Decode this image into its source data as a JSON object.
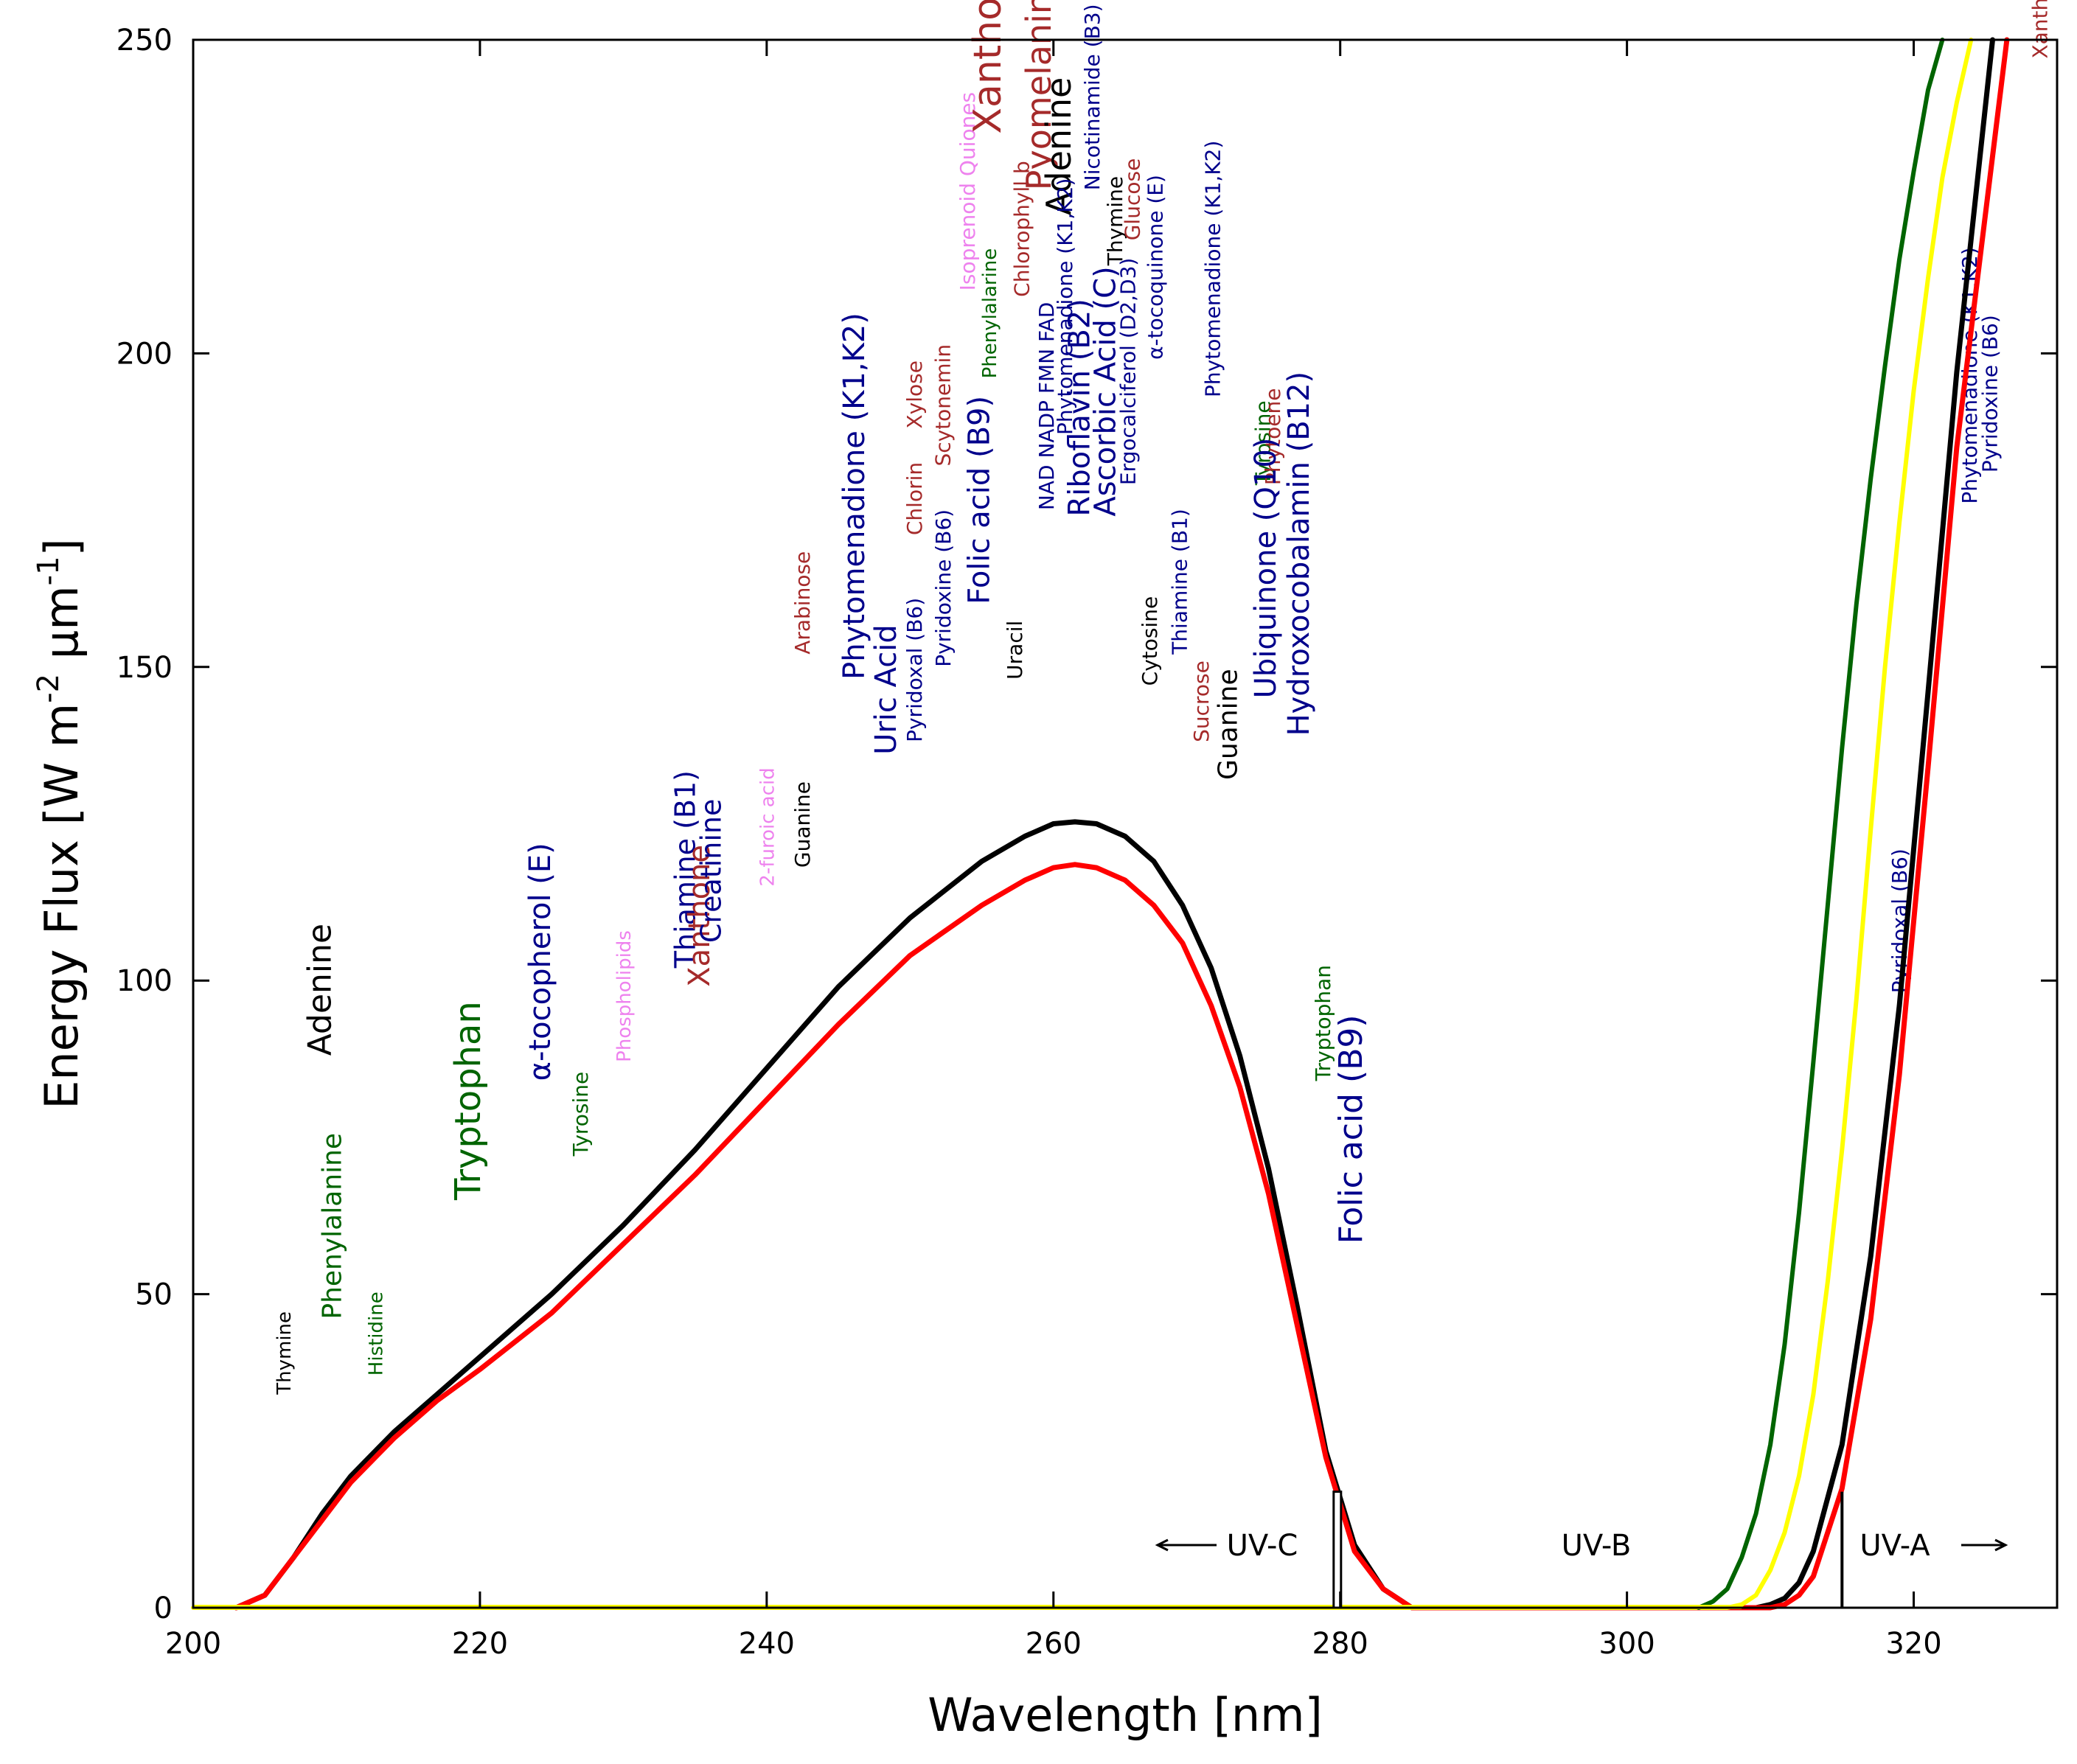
{
  "chart_data": {
    "type": "line",
    "title": "",
    "xlabel": "Wavelength [nm]",
    "ylabel": "Energy Flux [W m-2 μm-1]",
    "ylabel_parts": {
      "main": "Energy Flux [W m",
      "sup1": "-2",
      "mid": " μm",
      "sup2": "-1",
      "end": "]"
    },
    "xlim": [
      200,
      330
    ],
    "ylim": [
      0,
      250
    ],
    "xticks": [
      200,
      220,
      240,
      260,
      280,
      300,
      320
    ],
    "yticks": [
      0,
      50,
      100,
      150,
      200,
      250
    ],
    "grid": false,
    "colors": {
      "black": "#000000",
      "red": "#ff0000",
      "yellow": "#ffff00",
      "green": "#006400",
      "navy": "#00008b",
      "darkred": "#a52a2a",
      "violet": "#ee82ee"
    },
    "series": [
      {
        "name": "flux_black",
        "color": "#000000",
        "x": [
          203,
          205,
          207,
          209,
          211,
          214,
          217,
          220,
          225,
          230,
          235,
          240,
          245,
          250,
          255,
          258,
          260,
          261.5,
          263,
          265,
          267,
          269,
          271,
          273,
          275,
          277,
          279,
          281,
          283,
          285,
          290,
          300,
          305,
          307,
          309,
          310,
          311,
          312,
          313,
          315,
          317,
          319,
          321,
          323,
          325.5
        ],
        "y": [
          0,
          2,
          8,
          15,
          21,
          28,
          34,
          40,
          50,
          61,
          73,
          86,
          99,
          110,
          119,
          123,
          125,
          125.3,
          125,
          123,
          119,
          112,
          102,
          88,
          70,
          48,
          25,
          10,
          3,
          0,
          0,
          0,
          0,
          0,
          0,
          0.5,
          1.5,
          4,
          9,
          26,
          56,
          96,
          146,
          197,
          250
        ]
      },
      {
        "name": "flux_red",
        "color": "#ff0000",
        "x": [
          203,
          205,
          207,
          209,
          211,
          214,
          217,
          220,
          225,
          230,
          235,
          240,
          245,
          250,
          255,
          258,
          260,
          261.5,
          263,
          265,
          267,
          269,
          271,
          273,
          275,
          277,
          279,
          281,
          283,
          285,
          290,
          300,
          305,
          307,
          309,
          310,
          311,
          312,
          313,
          315,
          317,
          319,
          321,
          323,
          326.5
        ],
        "y": [
          0,
          2,
          8,
          14,
          20,
          27,
          33,
          38,
          47,
          58,
          69,
          81,
          93,
          104,
          112,
          116,
          118,
          118.5,
          118,
          116,
          112,
          106,
          96,
          83,
          66,
          45,
          24,
          9,
          3,
          0,
          0,
          0,
          0,
          0,
          0,
          0,
          0.5,
          2,
          5,
          19,
          46,
          85,
          134,
          185,
          250
        ]
      },
      {
        "name": "flux_yellow",
        "color": "#ffff00",
        "x": [
          200,
          300,
          305,
          307,
          308,
          309,
          310,
          311,
          312,
          313,
          314,
          315,
          316,
          317,
          318,
          319,
          320,
          321,
          322,
          323,
          324
        ],
        "y": [
          0,
          0,
          0,
          0,
          0.5,
          2,
          6,
          12,
          21,
          34,
          52,
          73,
          97,
          124,
          150,
          173,
          194,
          212,
          228,
          240,
          250
        ]
      },
      {
        "name": "flux_green",
        "color": "#006400",
        "x": [
          305,
          306,
          307,
          308,
          309,
          310,
          311,
          312,
          313,
          314,
          315,
          316,
          317,
          318,
          319,
          320,
          321,
          322
        ],
        "y": [
          0,
          1,
          3,
          8,
          15,
          26,
          42,
          63,
          87,
          112,
          137,
          160,
          180,
          198,
          215,
          229,
          242,
          250
        ]
      }
    ],
    "bands": [
      {
        "label": "UV-C",
        "arrow": "←"
      },
      {
        "label": "UV-B",
        "arrow": ""
      },
      {
        "label": "UV-A",
        "arrow": "→"
      }
    ],
    "markers": [
      {
        "x": 279.8,
        "y_top": 18.5,
        "kind": "box"
      },
      {
        "x": 315,
        "y_top": 18.5,
        "kind": "line"
      }
    ],
    "annotations": [
      {
        "text": "Thymine",
        "x": 206.8,
        "y": 34,
        "size": 26,
        "color": "#000000"
      },
      {
        "text": "Phenylalanine",
        "x": 210.3,
        "y": 46,
        "size": 36,
        "color": "#006400"
      },
      {
        "text": "Histidine",
        "x": 213.2,
        "y": 37,
        "size": 26,
        "color": "#006400"
      },
      {
        "text": "Adenine",
        "x": 209.6,
        "y": 88,
        "size": 44,
        "color": "#000000"
      },
      {
        "text": "Tryptophan",
        "x": 220,
        "y": 65,
        "size": 48,
        "color": "#006400"
      },
      {
        "text": "α-tocopherol (E)",
        "x": 224.9,
        "y": 84,
        "size": 40,
        "color": "#00008b"
      },
      {
        "text": "Tyrosine",
        "x": 227.5,
        "y": 72,
        "size": 28,
        "color": "#006400"
      },
      {
        "text": "Phospholipids",
        "x": 230.5,
        "y": 87,
        "size": 26,
        "color": "#ee82ee"
      },
      {
        "text": "Thiamine (B1)",
        "x": 235,
        "y": 102,
        "size": 38,
        "color": "#00008b"
      },
      {
        "text": "Xanthone",
        "x": 236,
        "y": 99,
        "size": 40,
        "color": "#a52a2a"
      },
      {
        "text": "Creatinine",
        "x": 236.8,
        "y": 106,
        "size": 38,
        "color": "#00008b"
      },
      {
        "text": "2-furoic acid",
        "x": 240.5,
        "y": 115,
        "size": 26,
        "color": "#ee82ee"
      },
      {
        "text": "Guanine",
        "x": 243,
        "y": 118,
        "size": 28,
        "color": "#000000"
      },
      {
        "text": "Arabinose",
        "x": 243,
        "y": 152,
        "size": 28,
        "color": "#a52a2a"
      },
      {
        "text": "Phytomenadione (K1,K2)",
        "x": 246.8,
        "y": 148,
        "size": 40,
        "color": "#00008b"
      },
      {
        "text": "Uric Acid",
        "x": 249,
        "y": 136,
        "size": 40,
        "color": "#00008b"
      },
      {
        "text": "Pyridoxal (B6)",
        "x": 250.8,
        "y": 138,
        "size": 28,
        "color": "#00008b"
      },
      {
        "text": "Chlorin",
        "x": 250.8,
        "y": 171,
        "size": 28,
        "color": "#a52a2a"
      },
      {
        "text": "Xylose",
        "x": 250.8,
        "y": 188,
        "size": 28,
        "color": "#a52a2a"
      },
      {
        "text": "Pyridoxine (B6)",
        "x": 252.8,
        "y": 150,
        "size": 28,
        "color": "#00008b"
      },
      {
        "text": "Scytonemin",
        "x": 252.8,
        "y": 182,
        "size": 28,
        "color": "#a52a2a"
      },
      {
        "text": "Isoprenoid Quiones",
        "x": 254.5,
        "y": 210,
        "size": 28,
        "color": "#ee82ee"
      },
      {
        "text": "Folic acid (B9)",
        "x": 255.5,
        "y": 160,
        "size": 40,
        "color": "#00008b"
      },
      {
        "text": "Phenylalarine",
        "x": 256,
        "y": 196,
        "size": 26,
        "color": "#006400"
      },
      {
        "text": "Xanthone",
        "x": 256.3,
        "y": 235,
        "size": 52,
        "color": "#a52a2a"
      },
      {
        "text": "Uracil",
        "x": 257.8,
        "y": 148,
        "size": 28,
        "color": "#000000"
      },
      {
        "text": "Chlorophyll b",
        "x": 258.3,
        "y": 209,
        "size": 28,
        "color": "#a52a2a"
      },
      {
        "text": "Pyomelanin",
        "x": 259.8,
        "y": 226,
        "size": 46,
        "color": "#a52a2a"
      },
      {
        "text": "Adenine",
        "x": 261.2,
        "y": 222,
        "size": 46,
        "color": "#000000"
      },
      {
        "text": "NAD NADP FMN FAD",
        "x": 260,
        "y": 175,
        "size": 28,
        "color": "#00008b"
      },
      {
        "text": "Phytomenadione (K1,K2)",
        "x": 261.3,
        "y": 187,
        "size": 28,
        "color": "#00008b"
      },
      {
        "text": "Riboflavin (B2)",
        "x": 262.5,
        "y": 174,
        "size": 40,
        "color": "#00008b"
      },
      {
        "text": "Nicotinamide (B3)",
        "x": 263.2,
        "y": 226,
        "size": 28,
        "color": "#00008b"
      },
      {
        "text": "Ascorbic Acid (C)",
        "x": 264.3,
        "y": 174,
        "size": 40,
        "color": "#00008b"
      },
      {
        "text": "Thymine",
        "x": 264.8,
        "y": 214,
        "size": 28,
        "color": "#000000"
      },
      {
        "text": "Ergocalciferol (D2,D3)",
        "x": 265.7,
        "y": 179,
        "size": 28,
        "color": "#00008b"
      },
      {
        "text": "Glucose",
        "x": 266,
        "y": 218,
        "size": 28,
        "color": "#a52a2a"
      },
      {
        "text": "Cytosine",
        "x": 267.2,
        "y": 147,
        "size": 28,
        "color": "#000000"
      },
      {
        "text": "α-tocoquinone (E)",
        "x": 267.6,
        "y": 199,
        "size": 28,
        "color": "#00008b"
      },
      {
        "text": "Thiamine (B1)",
        "x": 269.3,
        "y": 152,
        "size": 28,
        "color": "#00008b"
      },
      {
        "text": "Sucrose",
        "x": 270.8,
        "y": 138,
        "size": 28,
        "color": "#a52a2a"
      },
      {
        "text": "Phytomenadione (K1,K2)",
        "x": 271.6,
        "y": 193,
        "size": 28,
        "color": "#00008b"
      },
      {
        "text": "Guanine",
        "x": 272.8,
        "y": 132,
        "size": 36,
        "color": "#000000"
      },
      {
        "text": "Tyrosine",
        "x": 275.1,
        "y": 179,
        "size": 28,
        "color": "#006400"
      },
      {
        "text": "Phytoene",
        "x": 275.8,
        "y": 179,
        "size": 28,
        "color": "#a52a2a"
      },
      {
        "text": "Ubiquinone (Q10)",
        "x": 275.5,
        "y": 145,
        "size": 40,
        "color": "#00008b"
      },
      {
        "text": "Hydroxocobalamin (B12)",
        "x": 277.8,
        "y": 139,
        "size": 40,
        "color": "#00008b"
      },
      {
        "text": "Tryptophan",
        "x": 279.3,
        "y": 84,
        "size": 28,
        "color": "#006400"
      },
      {
        "text": "Folic acid (B9)",
        "x": 281.5,
        "y": 58,
        "size": 44,
        "color": "#00008b"
      },
      {
        "text": "Pyridoxal (B6)",
        "x": 319.5,
        "y": 98,
        "size": 28,
        "color": "#00008b"
      },
      {
        "text": "Phytomenadione (K1,K2)",
        "x": 324.4,
        "y": 176,
        "size": 28,
        "color": "#00008b"
      },
      {
        "text": "Pyridoxine (B6)",
        "x": 325.8,
        "y": 181,
        "size": 28,
        "color": "#00008b"
      },
      {
        "text": "Xanthone",
        "x": 329.3,
        "y": 247,
        "size": 28,
        "color": "#a52a2a"
      }
    ]
  }
}
